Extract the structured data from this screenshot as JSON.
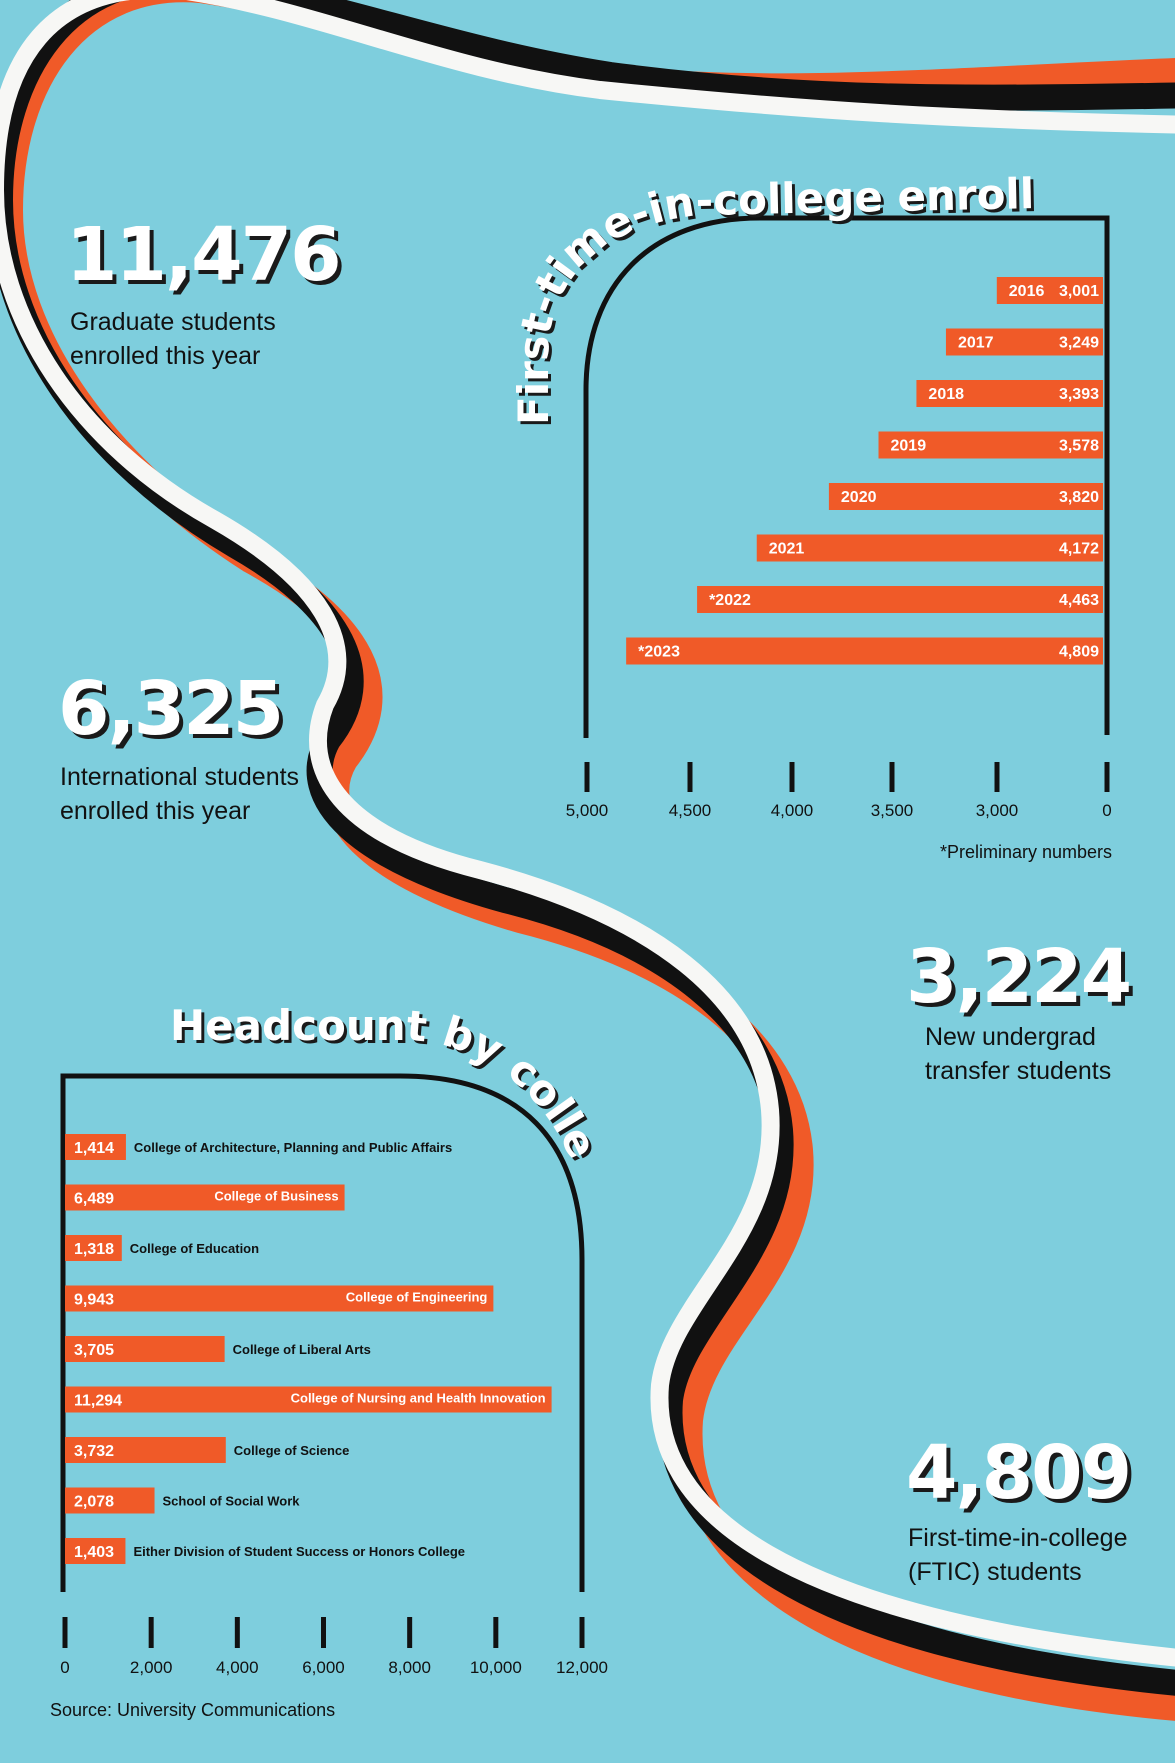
{
  "colors": {
    "background": "#7ecedd",
    "bar": "#f05a28",
    "ribbon_white": "#f7f7f5",
    "ribbon_black": "#111111",
    "ribbon_orange": "#f05a28"
  },
  "stats": [
    {
      "value": "11,476",
      "label": "Graduate students\nenrolled this year"
    },
    {
      "value": "6,325",
      "label": "International students\n enrolled this year"
    },
    {
      "value": "3,224",
      "label": "New undergrad\ntransfer students"
    },
    {
      "value": "4,809",
      "label": "First-time-in-college\n(FTIC) students"
    }
  ],
  "note": "*Preliminary numbers",
  "source": "Source: University Communications",
  "chart_data": [
    {
      "type": "bar",
      "orientation": "horizontal",
      "title": "First-time-in-college enrollment",
      "categories": [
        "2016",
        "2017",
        "2018",
        "2019",
        "2020",
        "2021",
        "*2022",
        "*2023"
      ],
      "values": [
        3001,
        3249,
        3393,
        3578,
        3820,
        4172,
        4463,
        4809
      ],
      "value_labels": [
        "3,001",
        "3,249",
        "3,393",
        "3,578",
        "3,820",
        "4,172",
        "4,463",
        "4,809"
      ],
      "xticks": [
        "5,000",
        "4,500",
        "4,000",
        "3,500",
        "3,000",
        "0"
      ],
      "x_reversed": true,
      "axis_break": "between 3,000 and 0"
    },
    {
      "type": "bar",
      "orientation": "horizontal",
      "title": "Headcount by college",
      "categories": [
        "College of Architecture, Planning and Public Affairs",
        "College of Business",
        "College of Education",
        "College of Engineering",
        "College of Liberal Arts",
        "College of Nursing and Health Innovation",
        "College of Science",
        "School of Social Work",
        "Either Division of Student Success or Honors College"
      ],
      "values": [
        1414,
        6489,
        1318,
        9943,
        3705,
        11294,
        3732,
        2078,
        1403
      ],
      "value_labels": [
        "1,414",
        "6,489",
        "1,318",
        "9,943",
        "3,705",
        "11,294",
        "3,732",
        "2,078",
        "1,403"
      ],
      "xticks": [
        "0",
        "2,000",
        "4,000",
        "6,000",
        "8,000",
        "10,000",
        "12,000"
      ],
      "xlim": [
        0,
        12000
      ]
    }
  ]
}
